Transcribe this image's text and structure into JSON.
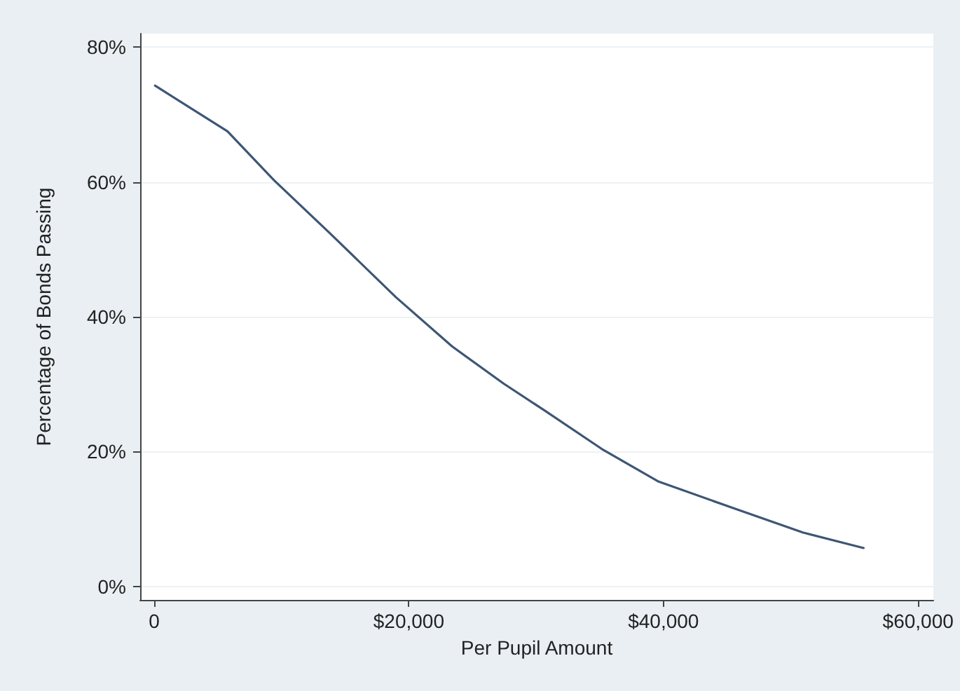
{
  "chart_data": {
    "type": "line",
    "xlabel": "Per Pupil Amount",
    "ylabel": "Percentage of Bonds Passing",
    "series": [
      {
        "color": "#3d5674",
        "x": [
          70,
          5760,
          9440,
          13850,
          18990,
          23400,
          27440,
          30740,
          35150,
          39560,
          45800,
          50940,
          55720
        ],
        "values": [
          74.3,
          67.5,
          60.2,
          52.3,
          42.9,
          35.6,
          30.1,
          26.0,
          20.4,
          15.6,
          11.4,
          8.0,
          5.7
        ]
      }
    ],
    "xlim": [
      -1100,
      61200
    ],
    "xticks": [
      {
        "value": 0,
        "label": "0"
      },
      {
        "value": 20000,
        "label": "$20,000"
      },
      {
        "value": 40000,
        "label": "$40,000"
      },
      {
        "value": 60000,
        "label": "$60,000"
      }
    ],
    "ylim": [
      -2,
      82
    ],
    "yticks": [
      {
        "value": 0,
        "label": "0%"
      },
      {
        "value": 20,
        "label": "20%"
      },
      {
        "value": 40,
        "label": "40%"
      },
      {
        "value": 60,
        "label": "60%"
      },
      {
        "value": 80,
        "label": "80%"
      }
    ],
    "grid": "y",
    "marker": "none",
    "line_style": "solid"
  }
}
